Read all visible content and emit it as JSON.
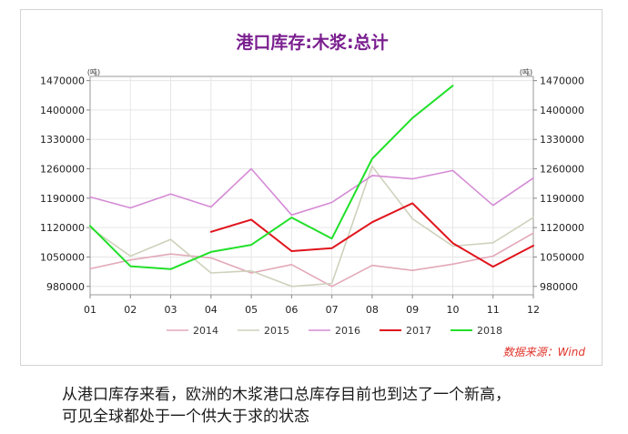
{
  "chart_data": {
    "type": "line",
    "title": "港口库存:木浆:总计",
    "unit_left": "(吨)",
    "unit_right": "(吨)",
    "categories": [
      "01",
      "02",
      "03",
      "04",
      "05",
      "06",
      "07",
      "08",
      "09",
      "10",
      "11",
      "12"
    ],
    "ylim": [
      960000,
      1480000
    ],
    "yticks": [
      980000,
      1050000,
      1120000,
      1190000,
      1260000,
      1330000,
      1400000,
      1470000
    ],
    "grid": true,
    "legend": "bottom",
    "series": [
      {
        "name": "2014",
        "color": "#e2a9b8",
        "values": [
          1022000,
          1043000,
          1057000,
          1048000,
          1012000,
          1032000,
          980000,
          1030000,
          1018000,
          1033000,
          1052000,
          1107000
        ]
      },
      {
        "name": "2015",
        "color": "#cfd1bc",
        "values": [
          1120000,
          1052000,
          1092000,
          1012000,
          1017000,
          980000,
          987000,
          1266000,
          1141000,
          1076000,
          1084000,
          1144000
        ]
      },
      {
        "name": "2016",
        "color": "#d58bd5",
        "values": [
          1193000,
          1167000,
          1200000,
          1169000,
          1260000,
          1150000,
          1180000,
          1244000,
          1236000,
          1256000,
          1173000,
          1238000
        ]
      },
      {
        "name": "2017",
        "color": "#e0141c",
        "values": [
          null,
          null,
          null,
          1110000,
          1139000,
          1064000,
          1071000,
          1133000,
          1178000,
          1083000,
          1027000,
          1077000
        ]
      },
      {
        "name": "2018",
        "color": "#22e02a",
        "values": [
          1124000,
          1028000,
          1021000,
          1062000,
          1079000,
          1144000,
          1094000,
          1284000,
          1381000,
          1458000,
          null,
          null
        ]
      }
    ],
    "source_note": "数据来源：Wind"
  },
  "caption": {
    "line1": "从港口库存来看，欧洲的木浆港口总库存目前也到达了一个新高，",
    "line2": "可见全球都处于一个供大于求的状态"
  }
}
